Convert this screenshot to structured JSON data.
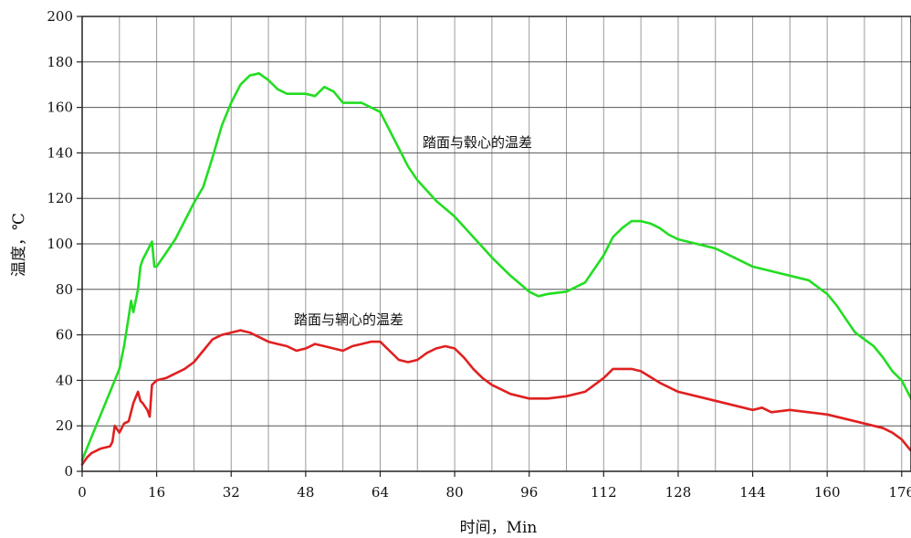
{
  "chart_data": {
    "type": "line",
    "xlabel": "时间，Min",
    "ylabel": "温度，℃",
    "xlim": [
      0,
      178
    ],
    "ylim": [
      0,
      200
    ],
    "x_ticks": [
      0,
      16,
      32,
      48,
      64,
      80,
      96,
      112,
      128,
      144,
      160,
      176
    ],
    "y_ticks": [
      0,
      20,
      40,
      60,
      80,
      100,
      120,
      140,
      160,
      180,
      200
    ],
    "grid": true,
    "annotations": [
      "踏面与毂心的温差",
      "踏面与辋心的温差"
    ],
    "series": [
      {
        "name": "踏面与毂心的温差",
        "color": "#22dd22",
        "x": [
          0,
          2,
          4,
          6,
          8,
          9,
          10,
          10.5,
          11,
          12,
          12.5,
          13,
          14,
          15,
          15.5,
          16,
          18,
          20,
          22,
          24,
          26,
          28,
          30,
          32,
          34,
          36,
          38,
          40,
          42,
          44,
          48,
          50,
          52,
          54,
          56,
          58,
          60,
          62,
          64,
          66,
          68,
          70,
          72,
          76,
          80,
          84,
          88,
          92,
          96,
          98,
          100,
          104,
          108,
          112,
          114,
          116,
          118,
          120,
          122,
          124,
          126,
          128,
          132,
          136,
          140,
          144,
          148,
          152,
          156,
          158,
          160,
          162,
          164,
          166,
          168,
          170,
          172,
          174,
          176,
          178
        ],
        "values": [
          5,
          15,
          25,
          35,
          45,
          55,
          68,
          75,
          70,
          80,
          90,
          93,
          97,
          101,
          90,
          90,
          96,
          102,
          110,
          118,
          125,
          138,
          152,
          162,
          170,
          174,
          175,
          172,
          168,
          166,
          166,
          165,
          169,
          167,
          162,
          162,
          162,
          160,
          158,
          150,
          142,
          134,
          128,
          119,
          112,
          103,
          94,
          86,
          79,
          77,
          78,
          79,
          83,
          95,
          103,
          107,
          110,
          110,
          109,
          107,
          104,
          102,
          100,
          98,
          94,
          90,
          88,
          86,
          84,
          81,
          78,
          73,
          67,
          61,
          58,
          55,
          50,
          44,
          40,
          32
        ]
      },
      {
        "name": "踏面与辋心的温差",
        "color": "#e02020",
        "x": [
          0,
          1,
          2,
          4,
          6,
          6.5,
          7,
          8,
          9,
          10,
          11,
          12,
          12.5,
          13,
          14,
          14.5,
          15,
          16,
          18,
          20,
          22,
          24,
          26,
          28,
          30,
          32,
          34,
          36,
          38,
          40,
          42,
          44,
          46,
          48,
          50,
          52,
          54,
          56,
          58,
          60,
          62,
          64,
          66,
          68,
          70,
          72,
          74,
          76,
          78,
          80,
          82,
          84,
          86,
          88,
          92,
          96,
          100,
          104,
          108,
          112,
          114,
          116,
          118,
          120,
          124,
          128,
          132,
          136,
          140,
          144,
          146,
          148,
          152,
          156,
          160,
          164,
          168,
          172,
          174,
          176,
          178
        ],
        "values": [
          3,
          6,
          8,
          10,
          11,
          13,
          20,
          17,
          21,
          22,
          30,
          35,
          31,
          30,
          27,
          24,
          38,
          40,
          41,
          43,
          45,
          48,
          53,
          58,
          60,
          61,
          62,
          61,
          59,
          57,
          56,
          55,
          53,
          54,
          56,
          55,
          54,
          53,
          55,
          56,
          57,
          57,
          53,
          49,
          48,
          49,
          52,
          54,
          55,
          54,
          50,
          45,
          41,
          38,
          34,
          32,
          32,
          33,
          35,
          41,
          45,
          45,
          45,
          44,
          39,
          35,
          33,
          31,
          29,
          27,
          28,
          26,
          27,
          26,
          25,
          23,
          21,
          19,
          17,
          14,
          9
        ]
      }
    ]
  }
}
